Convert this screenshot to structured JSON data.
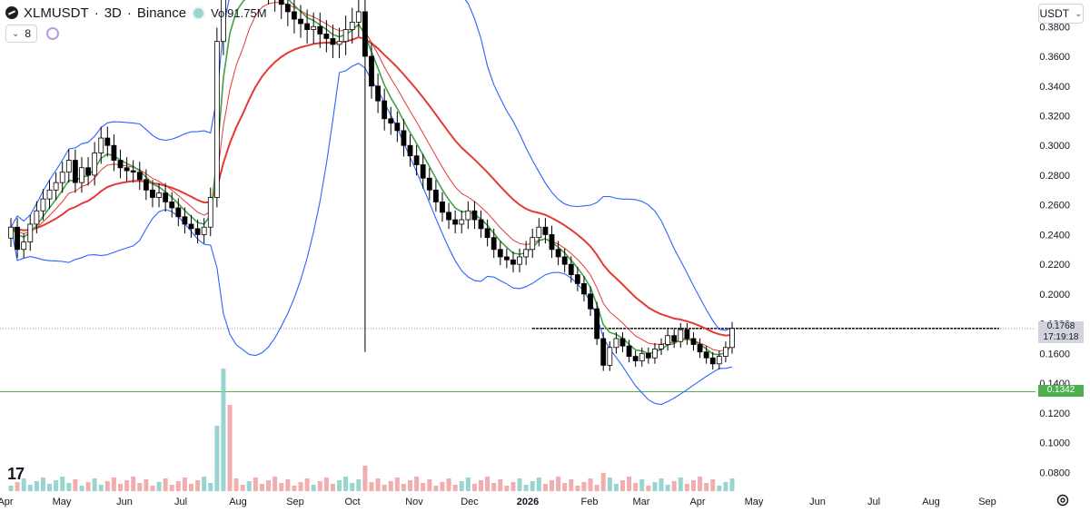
{
  "header": {
    "symbol": "XLMUSDT",
    "sep1": "·",
    "timeframe": "3D",
    "sep2": "·",
    "exchange": "Binance",
    "volume_label": "Vol",
    "volume_value": "91.75M",
    "indicator_count": "8",
    "currency": "USDT"
  },
  "price_tags": {
    "current_price": "0.1768",
    "countdown": "17:19:18",
    "support_price": "0.1342"
  },
  "colors": {
    "up": "#ffffff",
    "down": "#000000",
    "bollinger": "#2962ff",
    "ema_red": "#e53935",
    "ema_green": "#43a047",
    "vol_up": "#80cbc4",
    "vol_down": "#ef9a9a",
    "support": "#4caf50"
  },
  "chart_data": {
    "type": "candlestick",
    "y_axis_ticks": [
      "0.3800",
      "0.3600",
      "0.3400",
      "0.3200",
      "0.3000",
      "0.2800",
      "0.2600",
      "0.2400",
      "0.2200",
      "0.2000",
      "0.1800",
      "0.1600",
      "0.1400",
      "0.1200",
      "0.1000",
      "0.0800"
    ],
    "x_axis_ticks": [
      "Apr",
      "May",
      "Jun",
      "Jul",
      "Aug",
      "Sep",
      "Oct",
      "Nov",
      "Dec",
      "2026",
      "Feb",
      "Mar",
      "Apr",
      "May",
      "Jun",
      "Jul",
      "Aug",
      "Sep"
    ],
    "ylim": [
      0.07,
      0.385
    ],
    "close": [
      0.245,
      0.23,
      0.235,
      0.247,
      0.256,
      0.264,
      0.27,
      0.275,
      0.282,
      0.29,
      0.275,
      0.285,
      0.28,
      0.295,
      0.305,
      0.3,
      0.29,
      0.285,
      0.283,
      0.282,
      0.277,
      0.27,
      0.265,
      0.268,
      0.262,
      0.258,
      0.252,
      0.247,
      0.244,
      0.24,
      0.245,
      0.265,
      0.37,
      0.452,
      0.435,
      0.42,
      0.41,
      0.43,
      0.425,
      0.415,
      0.405,
      0.4,
      0.395,
      0.39,
      0.385,
      0.382,
      0.378,
      0.38,
      0.375,
      0.372,
      0.368,
      0.37,
      0.378,
      0.383,
      0.39,
      0.36,
      0.34,
      0.33,
      0.318,
      0.315,
      0.31,
      0.3,
      0.293,
      0.287,
      0.278,
      0.27,
      0.262,
      0.255,
      0.25,
      0.247,
      0.25,
      0.256,
      0.25,
      0.244,
      0.238,
      0.23,
      0.225,
      0.223,
      0.22,
      0.225,
      0.23,
      0.238,
      0.245,
      0.24,
      0.23,
      0.225,
      0.22,
      0.213,
      0.207,
      0.2,
      0.19,
      0.17,
      0.152,
      0.164,
      0.17,
      0.165,
      0.158,
      0.155,
      0.16,
      0.157,
      0.163,
      0.166,
      0.172,
      0.168,
      0.176,
      0.17,
      0.166,
      0.161,
      0.157,
      0.153,
      0.158,
      0.164,
      0.1768
    ],
    "series": [
      {
        "name": "",
        "role": "bollinger-upper"
      },
      {
        "name": "",
        "role": "bollinger-lower"
      },
      {
        "name": "",
        "role": "ema-red"
      },
      {
        "name": "",
        "role": "ema-green"
      }
    ],
    "horizontal_lines": [
      0.1768,
      0.1342
    ],
    "volume_present": true,
    "grid": false
  }
}
